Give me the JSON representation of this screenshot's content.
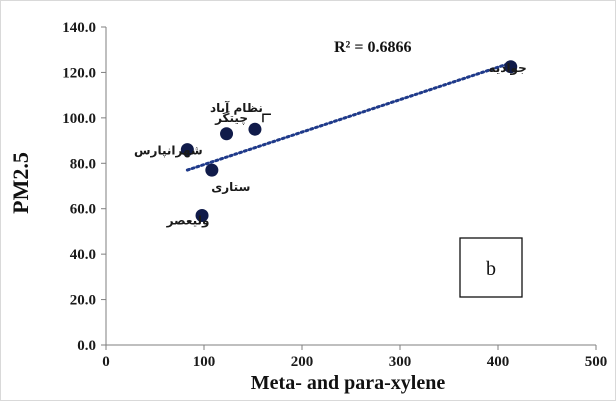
{
  "chart_data": {
    "type": "scatter",
    "title": "",
    "xlabel": "Meta- and para-xylene",
    "ylabel": "PM2.5",
    "xlim": [
      0,
      500
    ],
    "ylim": [
      0,
      140
    ],
    "x_ticks": [
      0,
      100,
      200,
      300,
      400,
      500
    ],
    "y_ticks": [
      "0.0",
      "20.0",
      "40.0",
      "60.0",
      "80.0",
      "100.0",
      "120.0",
      "140.0"
    ],
    "grid": false,
    "trendline": {
      "style": "dotted",
      "r2_label": "R² = 0.6866"
    },
    "panel_label": "b",
    "point_color": "#101b4a",
    "trend_color": "#1f3a8a",
    "points": [
      {
        "name": "جوادیه",
        "x": 413,
        "y": 122.5
      },
      {
        "name": "نظام آباد",
        "x": 152,
        "y": 95
      },
      {
        "name": "چیتگر",
        "x": 123,
        "y": 93
      },
      {
        "name": "شهرانپارس",
        "x": 83,
        "y": 86
      },
      {
        "name": "ستاری",
        "x": 108,
        "y": 77
      },
      {
        "name": "ولیعصر",
        "x": 98,
        "y": 57
      }
    ]
  }
}
